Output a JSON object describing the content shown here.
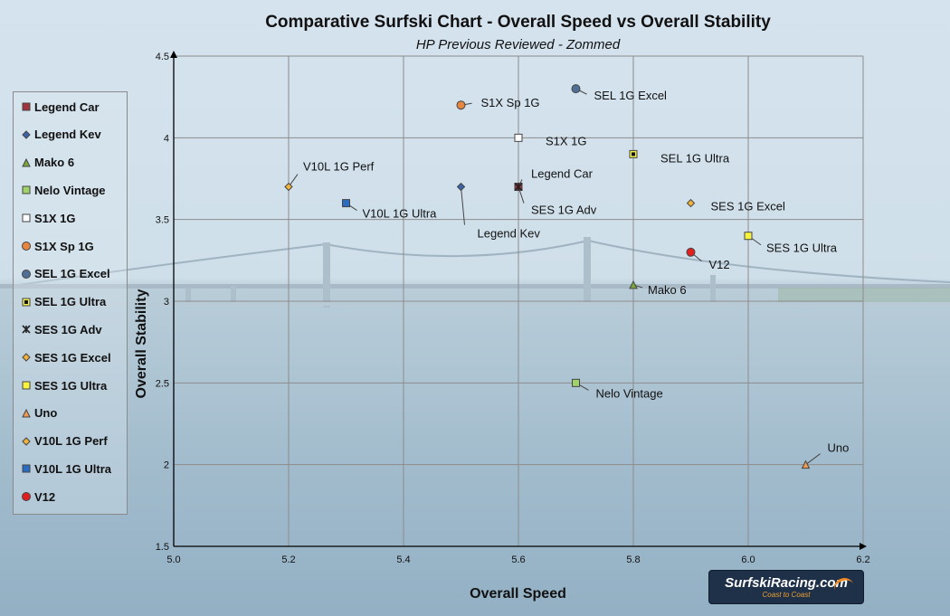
{
  "chart_data": {
    "type": "scatter",
    "title": "Comparative Surfski Chart - Overall Speed vs Overall Stability",
    "subtitle": "HP Previous Reviewed - Zommed",
    "xlabel": "Overall Speed",
    "ylabel": "Overall Stability",
    "xlim": [
      5.0,
      6.2
    ],
    "ylim": [
      1.5,
      4.5
    ],
    "x_ticks": [
      "5.0",
      "5.2",
      "5.4",
      "5.6",
      "5.8",
      "6.0",
      "6.2"
    ],
    "y_ticks": [
      "1.5",
      "2",
      "2.5",
      "3",
      "3.5",
      "4",
      "4.5"
    ],
    "grid": true,
    "legend_placement": "left",
    "series": [
      {
        "name": "Legend Car",
        "x": 5.6,
        "y": 3.7,
        "marker": "square",
        "color": "#a0353d",
        "label": "Legend Car"
      },
      {
        "name": "Legend Kev",
        "x": 5.5,
        "y": 3.7,
        "marker": "diamond",
        "color": "#3c64a8",
        "label": "Legend Kev"
      },
      {
        "name": "Mako 6",
        "x": 5.8,
        "y": 3.1,
        "marker": "triangle",
        "color": "#7aa83a",
        "label": "Mako 6"
      },
      {
        "name": "Nelo Vintage",
        "x": 5.7,
        "y": 2.5,
        "marker": "square",
        "color": "#9fd26a",
        "label": "Nelo Vintage"
      },
      {
        "name": "S1X 1G",
        "x": 5.6,
        "y": 4.0,
        "marker": "square",
        "color": "#ffffff",
        "label": "S1X 1G"
      },
      {
        "name": "S1X Sp 1G",
        "x": 5.5,
        "y": 4.2,
        "marker": "circle",
        "color": "#e88640",
        "label": "S1X Sp 1G"
      },
      {
        "name": "SEL 1G Excel",
        "x": 5.7,
        "y": 4.3,
        "marker": "circle",
        "color": "#4f6f96",
        "label": "SEL 1G Excel"
      },
      {
        "name": "SEL 1G Ultra",
        "x": 5.8,
        "y": 3.9,
        "marker": "square-dot",
        "color": "#f4f04a",
        "label": "SEL 1G Ultra"
      },
      {
        "name": "SES 1G Adv",
        "x": 5.6,
        "y": 3.7,
        "marker": "star",
        "color": "#222222",
        "label": "SES 1G Adv"
      },
      {
        "name": "SES 1G Excel",
        "x": 5.9,
        "y": 3.6,
        "marker": "diamond",
        "color": "#f2b33a",
        "label": "SES 1G Excel"
      },
      {
        "name": "SES 1G Ultra",
        "x": 6.0,
        "y": 3.4,
        "marker": "square",
        "color": "#f8f33e",
        "label": "SES 1G Ultra"
      },
      {
        "name": "Uno",
        "x": 6.1,
        "y": 2.0,
        "marker": "triangle",
        "color": "#f29a50",
        "label": "Uno"
      },
      {
        "name": "V10L 1G Perf",
        "x": 5.2,
        "y": 3.7,
        "marker": "diamond",
        "color": "#f2b33a",
        "label": "V10L 1G Perf"
      },
      {
        "name": "V10L 1G Ultra",
        "x": 5.3,
        "y": 3.6,
        "marker": "square",
        "color": "#2a6cc0",
        "label": "V10L 1G Ultra"
      },
      {
        "name": "V12",
        "x": 5.9,
        "y": 3.3,
        "marker": "circle",
        "color": "#e02020",
        "label": "V12"
      }
    ]
  },
  "logo": {
    "text": "SurfskiRacing.com",
    "tagline": "Coast to Coast"
  }
}
